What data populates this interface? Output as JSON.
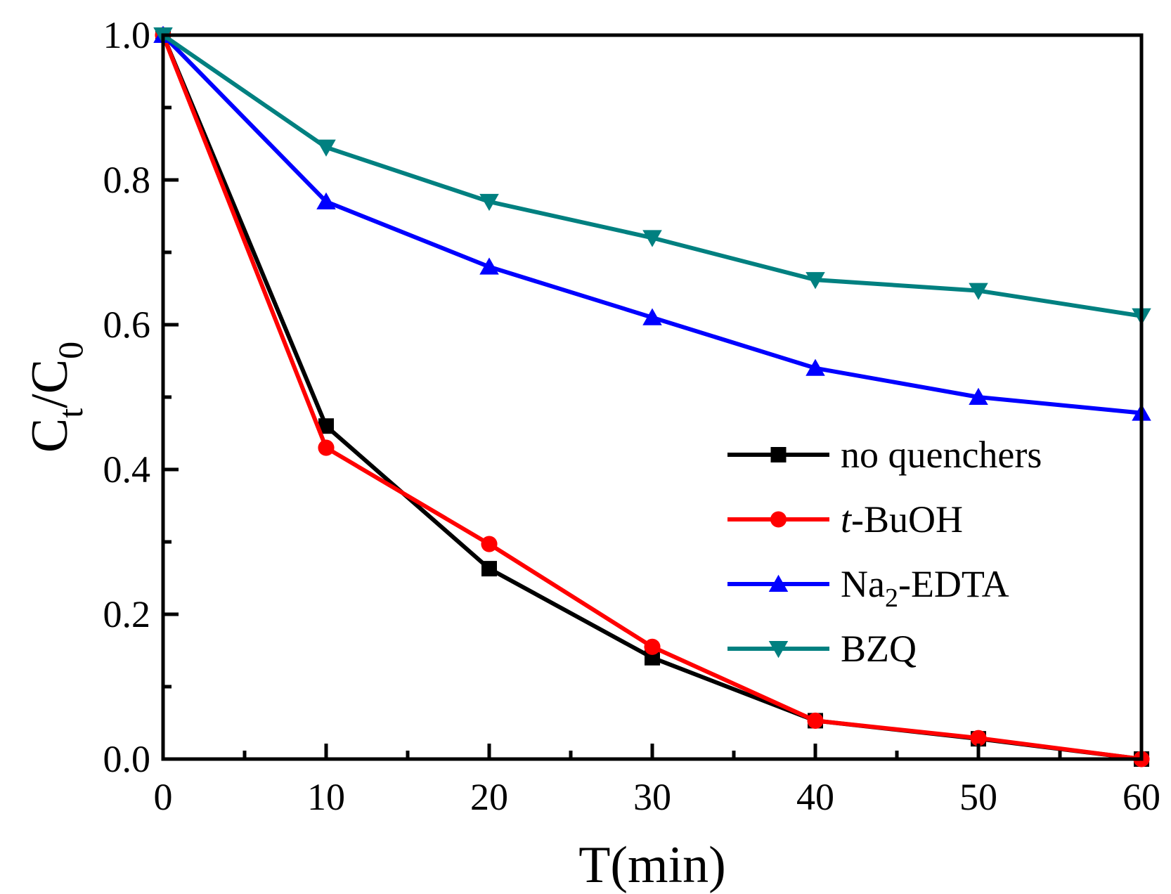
{
  "chart_data": {
    "type": "line",
    "xlabel": "T(min)",
    "ylabel": {
      "main": "C",
      "sub1": "t",
      "sep": "/",
      "main2": "C",
      "sub2": "0"
    },
    "xlim": [
      0,
      60
    ],
    "ylim": [
      0,
      1.0
    ],
    "xticks": [
      "0",
      "10",
      "20",
      "30",
      "40",
      "50",
      "60"
    ],
    "yticks": [
      "0.0",
      "0.2",
      "0.4",
      "0.6",
      "0.8",
      "1.0"
    ],
    "grid": false,
    "legend_position": "bottom-right",
    "x": [
      0,
      10,
      20,
      30,
      40,
      50,
      60
    ],
    "series": [
      {
        "name": "no quenchers",
        "name_parts": {
          "italic": "",
          "text": "no quenchers",
          "sub": "",
          "rest": ""
        },
        "color": "#000000",
        "marker": "square",
        "values": [
          1.0,
          0.46,
          0.263,
          0.14,
          0.053,
          0.028,
          0.0
        ]
      },
      {
        "name": "t-BuOH",
        "name_parts": {
          "italic": "t",
          "text": "-BuOH",
          "sub": "",
          "rest": ""
        },
        "color": "#ff0000",
        "marker": "circle",
        "values": [
          1.0,
          0.43,
          0.297,
          0.155,
          0.053,
          0.029,
          0.0
        ]
      },
      {
        "name": "Na2-EDTA",
        "name_parts": {
          "italic": "",
          "text": "Na",
          "sub": "2",
          "rest": "-EDTA"
        },
        "color": "#0000ff",
        "marker": "triangle-up",
        "values": [
          1.0,
          0.77,
          0.68,
          0.61,
          0.54,
          0.5,
          0.478
        ]
      },
      {
        "name": "BZQ",
        "name_parts": {
          "italic": "",
          "text": "BZQ",
          "sub": "",
          "rest": ""
        },
        "color": "#008080",
        "marker": "triangle-down",
        "values": [
          1.0,
          0.845,
          0.77,
          0.72,
          0.662,
          0.647,
          0.612
        ]
      }
    ]
  }
}
